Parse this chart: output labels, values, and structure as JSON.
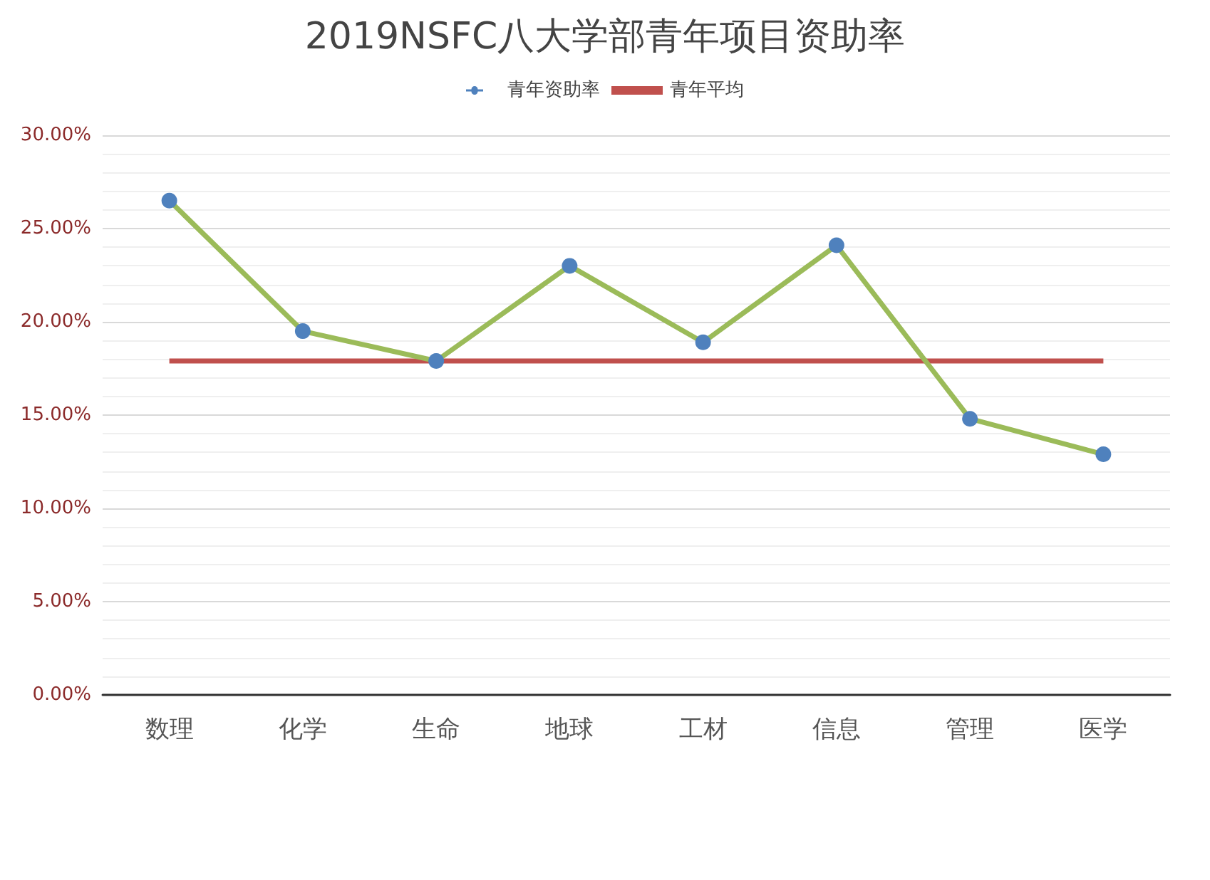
{
  "chart_data": {
    "type": "line",
    "title": "2019NSFC八大学部青年项目资助率",
    "categories": [
      "数理",
      "化学",
      "生命",
      "地球",
      "工材",
      "信息",
      "管理",
      "医学"
    ],
    "series": [
      {
        "name": "青年资助率",
        "color": "#9bbb59",
        "colors": [
          "#4f81bd",
          "#4f81bd",
          "#4f81bd",
          "#4f81bd",
          "#4f81bd",
          "#4f81bd",
          "#4f81bd",
          "#4f81bd"
        ],
        "values": [
          26.5,
          19.5,
          17.9,
          23.0,
          18.9,
          24.1,
          14.8,
          12.9
        ]
      }
    ],
    "ref_lines": [
      {
        "axis": "y",
        "value": 17.9,
        "label": "青年平均",
        "color": "#c0504d",
        "line_style": "solid"
      }
    ],
    "ylim": [
      0,
      30
    ],
    "yticks": [
      {
        "value": 0,
        "label": "0.00%"
      },
      {
        "value": 5,
        "label": "5.00%"
      },
      {
        "value": 10,
        "label": "10.00%"
      },
      {
        "value": 15,
        "label": "15.00%"
      },
      {
        "value": 20,
        "label": "20.00%"
      },
      {
        "value": 25,
        "label": "25.00%"
      },
      {
        "value": 30,
        "label": "30.00%"
      }
    ],
    "grid": "y",
    "legend": "top",
    "marker": "circle",
    "line_style": "solid"
  }
}
